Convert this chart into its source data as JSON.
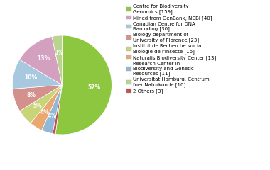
{
  "labels": [
    "Centre for Biodiversity\nGenomics [159]",
    "Mined from GenBank, NCBI [40]",
    "Canadian Centre for DNA\nBarcoding [30]",
    "Biology department of\nUniversity of Florence [23]",
    "Institut de Recherche sur la\nBiologie de l'Insecte [16]",
    "Naturalis Biodiversity Center [13]",
    "Research Center in\nBiodiversity and Genetic\nResources [11]",
    "Universitat Hamburg, Centrum\nfuer Naturkunde [10]",
    "2 Others [3]"
  ],
  "values": [
    159,
    40,
    30,
    23,
    16,
    13,
    11,
    10,
    3
  ],
  "colors": [
    "#8dc63f",
    "#d4a0c0",
    "#a8c8e0",
    "#d4908c",
    "#c8d478",
    "#e8a870",
    "#90b8d8",
    "#b8d490",
    "#c0504d"
  ],
  "figsize": [
    3.8,
    2.4
  ],
  "dpi": 100
}
